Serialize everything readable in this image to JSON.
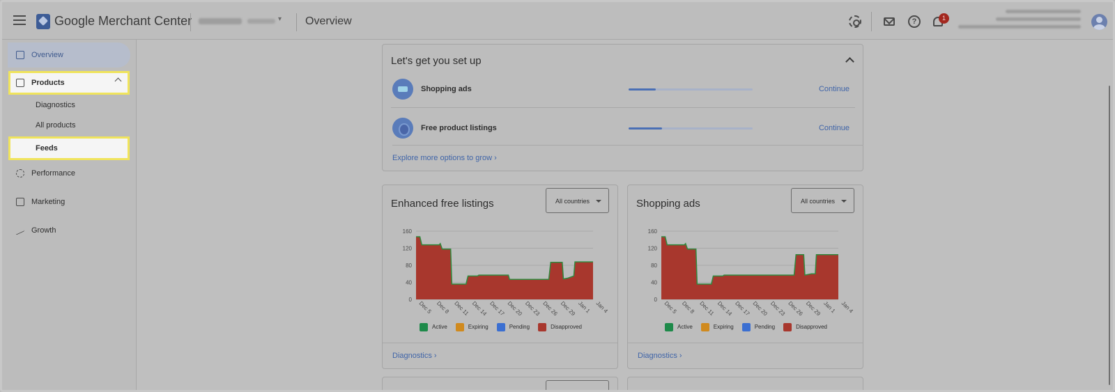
{
  "header": {
    "app_title": "Google Merchant Center",
    "page_title": "Overview",
    "notification_count": "1",
    "help_glyph": "?"
  },
  "sidebar": {
    "overview": "Overview",
    "products": "Products",
    "diagnostics": "Diagnostics",
    "all_products": "All products",
    "feeds": "Feeds",
    "performance": "Performance",
    "marketing": "Marketing",
    "growth": "Growth"
  },
  "setup": {
    "title": "Let's get you set up",
    "rows": [
      {
        "label": "Shopping ads",
        "progress": 0.22,
        "action": "Continue"
      },
      {
        "label": "Free product listings",
        "progress": 0.27,
        "action": "Continue"
      }
    ],
    "explore": "Explore more options to grow ›"
  },
  "cards": [
    {
      "title": "Enhanced free listings",
      "dropdown": "All countries",
      "link": "Diagnostics ›"
    },
    {
      "title": "Shopping ads",
      "dropdown": "All countries",
      "link": "Diagnostics ›"
    }
  ],
  "legend": {
    "items": [
      {
        "label": "Active",
        "color": "#1e8a4a"
      },
      {
        "label": "Expiring",
        "color": "#d08a1e"
      },
      {
        "label": "Pending",
        "color": "#3b6fd1"
      },
      {
        "label": "Disapproved",
        "color": "#a8372d"
      }
    ]
  },
  "colors": {
    "accent": "#3f64a8",
    "disapproved": "#a8372d",
    "active_line": "#2f8a3e",
    "highlight": "#f0e45c"
  },
  "chart_data": [
    {
      "type": "area",
      "title": "Enhanced free listings",
      "x_ticks": [
        "Dec 5",
        "Dec 8",
        "Dec 11",
        "Dec 14",
        "Dec 17",
        "Dec 20",
        "Dec 23",
        "Dec 26",
        "Dec 29",
        "Jan 1",
        "Jan 4"
      ],
      "y_ticks": [
        0,
        40,
        80,
        120,
        160
      ],
      "ylim": [
        0,
        160
      ],
      "series": [
        {
          "name": "Disapproved",
          "color": "#a8372d",
          "points": [
            [
              0,
              147
            ],
            [
              1,
              147
            ],
            [
              1.5,
              128
            ],
            [
              6,
              128
            ],
            [
              6.3,
              131
            ],
            [
              6.8,
              118
            ],
            [
              9,
              118
            ],
            [
              9.3,
              36
            ],
            [
              13,
              36
            ],
            [
              13.5,
              55
            ],
            [
              16,
              55
            ],
            [
              16.3,
              57
            ],
            [
              24,
              57
            ],
            [
              24.3,
              47
            ],
            [
              34.5,
              47
            ],
            [
              35,
              87
            ],
            [
              38,
              87
            ],
            [
              38.3,
              48
            ],
            [
              39.5,
              50
            ],
            [
              41,
              55
            ],
            [
              41.3,
              88
            ],
            [
              46,
              88
            ]
          ]
        },
        {
          "name": "Active",
          "color": "#2f8a3e",
          "values": []
        },
        {
          "name": "Expiring",
          "color": "#d08a1e",
          "values": []
        },
        {
          "name": "Pending",
          "color": "#3b6fd1",
          "values": []
        }
      ]
    },
    {
      "type": "area",
      "title": "Shopping ads",
      "x_ticks": [
        "Dec 5",
        "Dec 8",
        "Dec 11",
        "Dec 14",
        "Dec 17",
        "Dec 20",
        "Dec 23",
        "Dec 26",
        "Dec 29",
        "Jan 1",
        "Jan 4"
      ],
      "y_ticks": [
        0,
        40,
        80,
        120,
        160
      ],
      "ylim": [
        0,
        160
      ],
      "series": [
        {
          "name": "Disapproved",
          "color": "#a8372d",
          "points": [
            [
              0,
              147
            ],
            [
              1,
              147
            ],
            [
              1.5,
              128
            ],
            [
              6,
              128
            ],
            [
              6.3,
              131
            ],
            [
              6.8,
              118
            ],
            [
              9,
              118
            ],
            [
              9.3,
              36
            ],
            [
              13,
              36
            ],
            [
              13.5,
              55
            ],
            [
              16,
              55
            ],
            [
              16.3,
              57
            ],
            [
              34.5,
              57
            ],
            [
              35,
              105
            ],
            [
              37,
              105
            ],
            [
              37.3,
              57
            ],
            [
              39,
              60
            ],
            [
              40,
              60
            ],
            [
              40.3,
              105
            ],
            [
              46,
              105
            ]
          ]
        },
        {
          "name": "Active",
          "color": "#2f8a3e",
          "values": []
        },
        {
          "name": "Expiring",
          "color": "#d08a1e",
          "values": []
        },
        {
          "name": "Pending",
          "color": "#3b6fd1",
          "values": []
        }
      ]
    }
  ]
}
